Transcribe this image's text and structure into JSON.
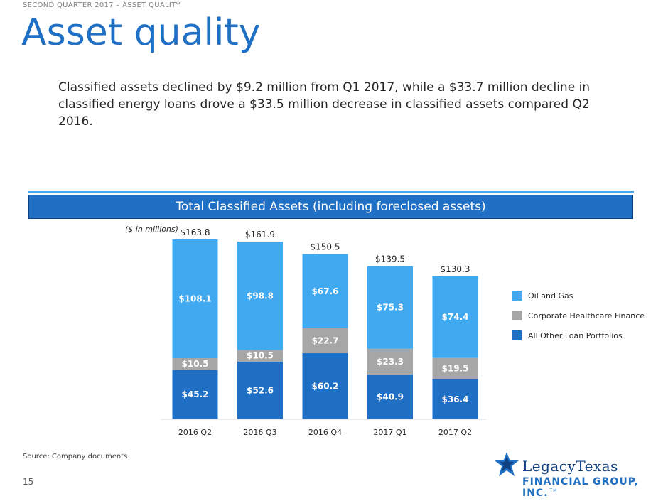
{
  "header": {
    "eyebrow": "SECOND QUARTER 2017 – ASSET QUALITY",
    "title": "Asset quality"
  },
  "intro": "Classified assets declined by $9.2 million from Q1 2017, while a $33.7 million decline in classified energy loans drove a $33.5 million decrease in classified assets compared Q2 2016.",
  "banner": "Total Classified Assets (including foreclosed assets)",
  "colors": {
    "brand_blue": "#1f6fc5",
    "banner_line": "#41a9f0",
    "oil_gas": "#41a9f0",
    "healthcare": "#a6a6a6",
    "other_loans": "#1f6fc5"
  },
  "chart_data": {
    "type": "bar",
    "stacked": true,
    "unit_note": "($ in millions)",
    "categories": [
      "2016 Q2",
      "2016 Q3",
      "2016 Q4",
      "2017 Q1",
      "2017 Q2"
    ],
    "series": [
      {
        "name": "All Other Loan Portfolios",
        "values": [
          45.2,
          52.6,
          60.2,
          40.9,
          36.4
        ],
        "labels": [
          "$45.2",
          "$52.6",
          "$60.2",
          "$40.9",
          "$36.4"
        ]
      },
      {
        "name": "Corporate Healthcare Finance",
        "values": [
          10.5,
          10.5,
          22.7,
          23.3,
          19.5
        ],
        "labels": [
          "$10.5",
          "$10.5",
          "$22.7",
          "$23.3",
          "$19.5"
        ]
      },
      {
        "name": "Oil and Gas",
        "values": [
          108.1,
          98.8,
          67.6,
          75.3,
          74.4
        ],
        "labels": [
          "$108.1",
          "$98.8",
          "$67.6",
          "$75.3",
          "$74.4"
        ]
      }
    ],
    "totals": [
      163.8,
      161.9,
      150.5,
      139.5,
      130.3
    ],
    "total_labels": [
      "$163.8",
      "$161.9",
      "$150.5",
      "$139.5",
      "$130.3"
    ],
    "ylim": [
      0,
      180
    ],
    "grid": false,
    "legend_position": "right"
  },
  "legend": [
    {
      "label": "Oil and Gas",
      "color": "#41a9f0"
    },
    {
      "label": "Corporate Healthcare Finance",
      "color": "#a6a6a6"
    },
    {
      "label": "All Other Loan Portfolios",
      "color": "#1f6fc5"
    }
  ],
  "footer": {
    "source": "Source: Company documents",
    "page_number": "15"
  },
  "logo": {
    "name": "LegacyTexas",
    "sub": "FINANCIAL GROUP, INC.",
    "tm": "TM"
  }
}
